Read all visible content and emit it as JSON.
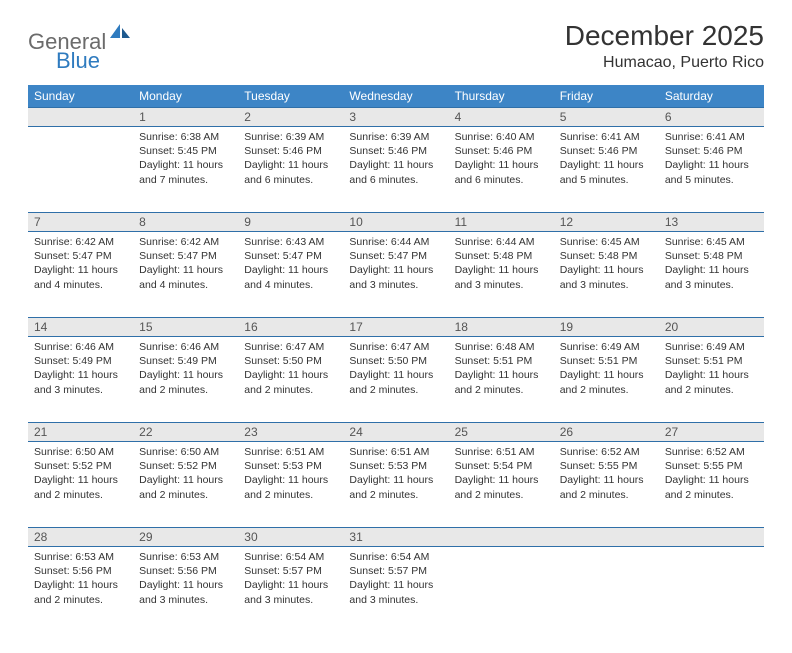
{
  "logo": {
    "text_gray": "General",
    "text_blue": "Blue"
  },
  "title": "December 2025",
  "location": "Humacao, Puerto Rico",
  "colors": {
    "header_bg": "#3d85c6",
    "header_text": "#ffffff",
    "daynum_bg": "#e8e8e8",
    "row_border": "#2f6fa8",
    "logo_gray": "#6b6b6b",
    "logo_blue": "#2f7bbf"
  },
  "day_headers": [
    "Sunday",
    "Monday",
    "Tuesday",
    "Wednesday",
    "Thursday",
    "Friday",
    "Saturday"
  ],
  "weeks": [
    [
      {
        "n": "",
        "sr": "",
        "ss": "",
        "dl": ""
      },
      {
        "n": "1",
        "sr": "6:38 AM",
        "ss": "5:45 PM",
        "dl": "11 hours and 7 minutes."
      },
      {
        "n": "2",
        "sr": "6:39 AM",
        "ss": "5:46 PM",
        "dl": "11 hours and 6 minutes."
      },
      {
        "n": "3",
        "sr": "6:39 AM",
        "ss": "5:46 PM",
        "dl": "11 hours and 6 minutes."
      },
      {
        "n": "4",
        "sr": "6:40 AM",
        "ss": "5:46 PM",
        "dl": "11 hours and 6 minutes."
      },
      {
        "n": "5",
        "sr": "6:41 AM",
        "ss": "5:46 PM",
        "dl": "11 hours and 5 minutes."
      },
      {
        "n": "6",
        "sr": "6:41 AM",
        "ss": "5:46 PM",
        "dl": "11 hours and 5 minutes."
      }
    ],
    [
      {
        "n": "7",
        "sr": "6:42 AM",
        "ss": "5:47 PM",
        "dl": "11 hours and 4 minutes."
      },
      {
        "n": "8",
        "sr": "6:42 AM",
        "ss": "5:47 PM",
        "dl": "11 hours and 4 minutes."
      },
      {
        "n": "9",
        "sr": "6:43 AM",
        "ss": "5:47 PM",
        "dl": "11 hours and 4 minutes."
      },
      {
        "n": "10",
        "sr": "6:44 AM",
        "ss": "5:47 PM",
        "dl": "11 hours and 3 minutes."
      },
      {
        "n": "11",
        "sr": "6:44 AM",
        "ss": "5:48 PM",
        "dl": "11 hours and 3 minutes."
      },
      {
        "n": "12",
        "sr": "6:45 AM",
        "ss": "5:48 PM",
        "dl": "11 hours and 3 minutes."
      },
      {
        "n": "13",
        "sr": "6:45 AM",
        "ss": "5:48 PM",
        "dl": "11 hours and 3 minutes."
      }
    ],
    [
      {
        "n": "14",
        "sr": "6:46 AM",
        "ss": "5:49 PM",
        "dl": "11 hours and 3 minutes."
      },
      {
        "n": "15",
        "sr": "6:46 AM",
        "ss": "5:49 PM",
        "dl": "11 hours and 2 minutes."
      },
      {
        "n": "16",
        "sr": "6:47 AM",
        "ss": "5:50 PM",
        "dl": "11 hours and 2 minutes."
      },
      {
        "n": "17",
        "sr": "6:47 AM",
        "ss": "5:50 PM",
        "dl": "11 hours and 2 minutes."
      },
      {
        "n": "18",
        "sr": "6:48 AM",
        "ss": "5:51 PM",
        "dl": "11 hours and 2 minutes."
      },
      {
        "n": "19",
        "sr": "6:49 AM",
        "ss": "5:51 PM",
        "dl": "11 hours and 2 minutes."
      },
      {
        "n": "20",
        "sr": "6:49 AM",
        "ss": "5:51 PM",
        "dl": "11 hours and 2 minutes."
      }
    ],
    [
      {
        "n": "21",
        "sr": "6:50 AM",
        "ss": "5:52 PM",
        "dl": "11 hours and 2 minutes."
      },
      {
        "n": "22",
        "sr": "6:50 AM",
        "ss": "5:52 PM",
        "dl": "11 hours and 2 minutes."
      },
      {
        "n": "23",
        "sr": "6:51 AM",
        "ss": "5:53 PM",
        "dl": "11 hours and 2 minutes."
      },
      {
        "n": "24",
        "sr": "6:51 AM",
        "ss": "5:53 PM",
        "dl": "11 hours and 2 minutes."
      },
      {
        "n": "25",
        "sr": "6:51 AM",
        "ss": "5:54 PM",
        "dl": "11 hours and 2 minutes."
      },
      {
        "n": "26",
        "sr": "6:52 AM",
        "ss": "5:55 PM",
        "dl": "11 hours and 2 minutes."
      },
      {
        "n": "27",
        "sr": "6:52 AM",
        "ss": "5:55 PM",
        "dl": "11 hours and 2 minutes."
      }
    ],
    [
      {
        "n": "28",
        "sr": "6:53 AM",
        "ss": "5:56 PM",
        "dl": "11 hours and 2 minutes."
      },
      {
        "n": "29",
        "sr": "6:53 AM",
        "ss": "5:56 PM",
        "dl": "11 hours and 3 minutes."
      },
      {
        "n": "30",
        "sr": "6:54 AM",
        "ss": "5:57 PM",
        "dl": "11 hours and 3 minutes."
      },
      {
        "n": "31",
        "sr": "6:54 AM",
        "ss": "5:57 PM",
        "dl": "11 hours and 3 minutes."
      },
      {
        "n": "",
        "sr": "",
        "ss": "",
        "dl": ""
      },
      {
        "n": "",
        "sr": "",
        "ss": "",
        "dl": ""
      },
      {
        "n": "",
        "sr": "",
        "ss": "",
        "dl": ""
      }
    ]
  ],
  "labels": {
    "sunrise": "Sunrise: ",
    "sunset": "Sunset: ",
    "daylight": "Daylight: "
  }
}
